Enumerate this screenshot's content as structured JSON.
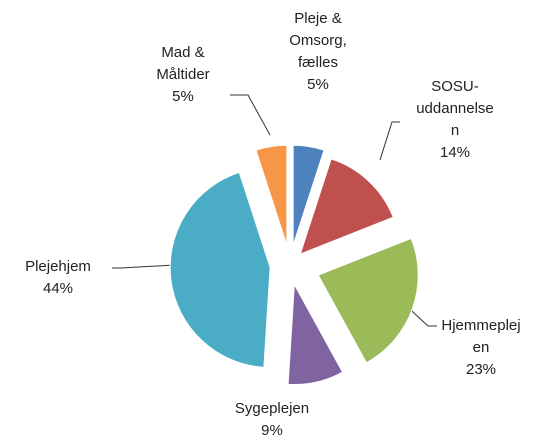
{
  "chart_data": {
    "type": "pie",
    "categories": [
      "Pleje & Omsorg, fælles",
      "SOSU-uddannelsen",
      "Hjemmeplejen",
      "Sygeplejen",
      "Plejehjem",
      "Mad & Måltider"
    ],
    "values": [
      5,
      14,
      23,
      9,
      44,
      5
    ],
    "value_labels": [
      "5%",
      "14%",
      "23%",
      "9%",
      "44%",
      "5%"
    ],
    "colors": [
      "#4f81bd",
      "#c0504d",
      "#9bbb59",
      "#8064a2",
      "#4bacc6",
      "#f79646"
    ]
  }
}
